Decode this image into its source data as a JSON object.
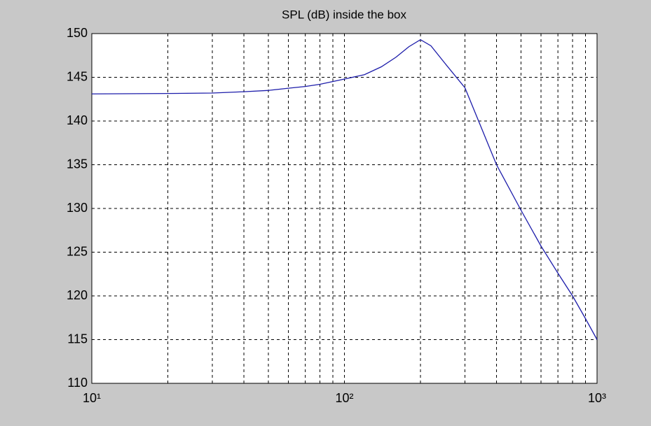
{
  "chart_data": {
    "type": "line",
    "title": "SPL (dB)  inside the box",
    "x": [
      10,
      20,
      30,
      40,
      50,
      60,
      70,
      80,
      100,
      120,
      140,
      160,
      180,
      200,
      220,
      250,
      300,
      400,
      500,
      600,
      700,
      800,
      900,
      1000
    ],
    "series": [
      {
        "name": "SPL",
        "color": "#1c1caa",
        "values": [
          143.1,
          143.15,
          143.2,
          143.35,
          143.5,
          143.75,
          143.95,
          144.2,
          144.8,
          145.3,
          146.2,
          147.3,
          148.5,
          149.3,
          148.6,
          146.6,
          143.8,
          135.0,
          129.8,
          125.7,
          122.6,
          120.0,
          117.4,
          115.0
        ]
      }
    ],
    "xscale": "log",
    "xlim": [
      10,
      1000
    ],
    "xticks": [
      {
        "value": 10,
        "label": "10¹"
      },
      {
        "value": 100,
        "label": "10²"
      },
      {
        "value": 1000,
        "label": "10³"
      }
    ],
    "xminor_grid": [
      20,
      30,
      40,
      50,
      60,
      70,
      80,
      90,
      200,
      300,
      400,
      500,
      600,
      700,
      800,
      900
    ],
    "ylim": [
      110,
      150
    ],
    "yticks": [
      110,
      115,
      120,
      125,
      130,
      135,
      140,
      145,
      150
    ],
    "grid": true
  }
}
